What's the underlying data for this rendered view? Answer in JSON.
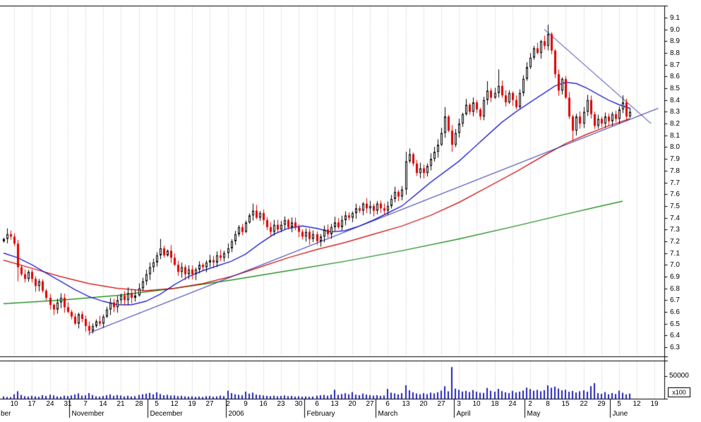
{
  "chart_data": {
    "type": "candlestick",
    "title": "",
    "grid": "vertical-dashed-weekly",
    "legend": "none",
    "price_axis": {
      "side": "right",
      "min": 6.3,
      "max": 9.1,
      "step": 0.1,
      "tick_labels": [
        "9.1",
        "9.0",
        "8.9",
        "8.8",
        "8.7",
        "8.6",
        "8.5",
        "8.4",
        "8.3",
        "8.2",
        "8.1",
        "8.0",
        "7.9",
        "7.8",
        "7.7",
        "7.6",
        "7.5",
        "7.4",
        "7.3",
        "7.2",
        "7.1",
        "7.0",
        "6.9",
        "6.8",
        "6.7",
        "6.6",
        "6.5",
        "6.4",
        "6.3"
      ]
    },
    "volume_axis": {
      "tick_value": 50000,
      "tick_label": "50000",
      "multiplier_label": "x100"
    },
    "date_axis": {
      "first_tick_day": 3,
      "tick_spacing_days": 5,
      "week_tick_labels": [
        "10",
        "17",
        "24",
        "31",
        "7",
        "14",
        "21",
        "28",
        "5",
        "12",
        "19",
        "27",
        "2",
        "9",
        "16",
        "23",
        "30",
        "6",
        "13",
        "20",
        "27",
        "6",
        "13",
        "20",
        "27",
        "3",
        "10",
        "18",
        "24",
        "2",
        "8",
        "15",
        "22",
        "29",
        "5",
        "12",
        "19"
      ],
      "month_labels": [
        {
          "label": "ber",
          "day": -1.6
        },
        {
          "label": "November",
          "day": 18.5
        },
        {
          "label": "December",
          "day": 40.5
        },
        {
          "label": "2006",
          "day": 62.5
        },
        {
          "label": "February",
          "day": 84.5
        },
        {
          "label": "March",
          "day": 104.5
        },
        {
          "label": "April",
          "day": 126.5
        },
        {
          "label": "May",
          "day": 146.5
        },
        {
          "label": "June",
          "day": 170.5
        }
      ]
    },
    "candles": {
      "note": "daily closes; open = previous close; highs/lows small wicks with listed overrides",
      "closes": [
        7.22,
        7.26,
        7.24,
        7.18,
        6.98,
        6.92,
        6.88,
        6.94,
        6.88,
        6.82,
        6.86,
        6.78,
        6.72,
        6.66,
        6.62,
        6.68,
        6.72,
        6.64,
        6.6,
        6.56,
        6.5,
        6.58,
        6.54,
        6.48,
        6.44,
        6.48,
        6.52,
        6.5,
        6.56,
        6.62,
        6.68,
        6.64,
        6.7,
        6.74,
        6.7,
        6.76,
        6.72,
        6.74,
        6.8,
        6.86,
        6.92,
        6.98,
        7.02,
        7.08,
        7.14,
        7.08,
        7.12,
        7.06,
        7.0,
        6.94,
        6.98,
        6.92,
        6.96,
        6.92,
        6.96,
        7.0,
        6.98,
        7.02,
        7.04,
        7.02,
        7.08,
        7.06,
        7.1,
        7.14,
        7.2,
        7.26,
        7.32,
        7.28,
        7.36,
        7.42,
        7.46,
        7.4,
        7.44,
        7.38,
        7.32,
        7.28,
        7.34,
        7.3,
        7.34,
        7.38,
        7.32,
        7.36,
        7.32,
        7.28,
        7.24,
        7.28,
        7.22,
        7.26,
        7.2,
        7.24,
        7.3,
        7.26,
        7.32,
        7.36,
        7.32,
        7.38,
        7.42,
        7.4,
        7.44,
        7.48,
        7.46,
        7.52,
        7.48,
        7.5,
        7.46,
        7.52,
        7.48,
        7.46,
        7.5,
        7.56,
        7.62,
        7.58,
        7.64,
        7.88,
        7.94,
        7.86,
        7.78,
        7.82,
        7.78,
        7.84,
        7.9,
        7.96,
        8.02,
        8.12,
        8.26,
        8.14,
        8.02,
        8.12,
        8.2,
        8.28,
        8.36,
        8.3,
        8.38,
        8.32,
        8.26,
        8.4,
        8.48,
        8.42,
        8.46,
        8.52,
        8.44,
        8.38,
        8.46,
        8.4,
        8.34,
        8.46,
        8.58,
        8.68,
        8.76,
        8.84,
        8.8,
        8.9,
        8.86,
        8.96,
        8.82,
        8.62,
        8.48,
        8.58,
        8.42,
        8.26,
        8.14,
        8.26,
        8.2,
        8.3,
        8.4,
        8.28,
        8.18,
        8.24,
        8.2,
        8.26,
        8.22,
        8.28,
        8.24,
        8.32,
        8.38,
        8.26,
        8.3
      ],
      "wick_overrides": {
        "4": {
          "l": 6.86
        },
        "24": {
          "l": 6.4
        },
        "44": {
          "h": 7.22
        },
        "70": {
          "h": 7.52
        },
        "113": {
          "h": 7.96
        },
        "124": {
          "h": 8.34
        },
        "126": {
          "l": 7.96
        },
        "136": {
          "h": 8.56
        },
        "139": {
          "h": 8.66
        },
        "153": {
          "h": 9.04
        },
        "160": {
          "l": 8.05
        },
        "174": {
          "h": 8.44
        }
      }
    },
    "volumes": [
      5200,
      4100,
      3600,
      9800,
      16500,
      8200,
      5600,
      4800,
      6400,
      5200,
      4300,
      7800,
      6200,
      8900,
      7400,
      5100,
      4600,
      6800,
      5900,
      7200,
      9400,
      11800,
      6800,
      7600,
      12500,
      8300,
      5400,
      4700,
      6200,
      7800,
      9600,
      6400,
      8200,
      7100,
      5300,
      6600,
      4900,
      5700,
      8400,
      9800,
      11200,
      12800,
      9600,
      14200,
      10400,
      7800,
      8600,
      6900,
      7400,
      5800,
      6300,
      5100,
      4700,
      5400,
      4200,
      4900,
      3800,
      5600,
      6100,
      4400,
      5200,
      6800,
      5900,
      17800,
      12400,
      9800,
      8700,
      7600,
      15600,
      11200,
      13400,
      9100,
      8300,
      7200,
      6400,
      5800,
      6700,
      5300,
      6100,
      7400,
      5600,
      6200,
      4800,
      5400,
      4600,
      5100,
      4300,
      4900,
      6800,
      7600,
      8400,
      6700,
      9200,
      19800,
      8600,
      10400,
      12200,
      9800,
      14600,
      8900,
      7800,
      11400,
      9200,
      8100,
      6900,
      7800,
      6400,
      7100,
      21600,
      13400,
      11800,
      9600,
      12400,
      29800,
      18600,
      14200,
      11600,
      9800,
      12400,
      10200,
      13600,
      11800,
      14400,
      17800,
      27600,
      16400,
      70000,
      22400,
      19600,
      15800,
      17400,
      14800,
      19200,
      15600,
      13400,
      12800,
      23800,
      17600,
      15400,
      21800,
      16800,
      14200,
      12600,
      17400,
      13800,
      15600,
      18200,
      24600,
      21400,
      17800,
      19600,
      16400,
      18800,
      29400,
      24200,
      26800,
      22400,
      18600,
      19800,
      15400,
      17200,
      13800,
      16400,
      18600,
      15600,
      27800,
      34600,
      12400,
      10800,
      14600,
      9800,
      12600,
      10400,
      17800,
      13200,
      9600,
      11400
    ],
    "moving_averages": [
      {
        "name": "ma-fast-blue",
        "color": "#0000cc",
        "points": [
          [
            0,
            7.1
          ],
          [
            4,
            7.06
          ],
          [
            8,
            7.0
          ],
          [
            12,
            6.93
          ],
          [
            16,
            6.86
          ],
          [
            20,
            6.79
          ],
          [
            24,
            6.73
          ],
          [
            28,
            6.69
          ],
          [
            32,
            6.66
          ],
          [
            36,
            6.66
          ],
          [
            40,
            6.69
          ],
          [
            44,
            6.75
          ],
          [
            48,
            6.83
          ],
          [
            52,
            6.9
          ],
          [
            56,
            6.95
          ],
          [
            60,
            6.99
          ],
          [
            64,
            7.03
          ],
          [
            68,
            7.09
          ],
          [
            72,
            7.18
          ],
          [
            76,
            7.26
          ],
          [
            80,
            7.31
          ],
          [
            84,
            7.33
          ],
          [
            88,
            7.31
          ],
          [
            92,
            7.28
          ],
          [
            96,
            7.29
          ],
          [
            100,
            7.33
          ],
          [
            104,
            7.38
          ],
          [
            108,
            7.44
          ],
          [
            112,
            7.5
          ],
          [
            116,
            7.6
          ],
          [
            120,
            7.7
          ],
          [
            124,
            7.79
          ],
          [
            128,
            7.88
          ],
          [
            132,
            7.99
          ],
          [
            136,
            8.1
          ],
          [
            140,
            8.21
          ],
          [
            144,
            8.3
          ],
          [
            148,
            8.38
          ],
          [
            152,
            8.46
          ],
          [
            155,
            8.52
          ],
          [
            158,
            8.55
          ],
          [
            161,
            8.54
          ],
          [
            164,
            8.5
          ],
          [
            167,
            8.45
          ],
          [
            170,
            8.4
          ],
          [
            173,
            8.36
          ],
          [
            176,
            8.33
          ]
        ]
      },
      {
        "name": "ma-medium-red",
        "color": "#cc0000",
        "points": [
          [
            0,
            7.04
          ],
          [
            8,
            6.97
          ],
          [
            16,
            6.9
          ],
          [
            24,
            6.84
          ],
          [
            32,
            6.8
          ],
          [
            40,
            6.78
          ],
          [
            48,
            6.8
          ],
          [
            56,
            6.84
          ],
          [
            64,
            6.9
          ],
          [
            72,
            6.98
          ],
          [
            80,
            7.06
          ],
          [
            88,
            7.13
          ],
          [
            96,
            7.19
          ],
          [
            104,
            7.26
          ],
          [
            112,
            7.33
          ],
          [
            120,
            7.42
          ],
          [
            128,
            7.53
          ],
          [
            136,
            7.66
          ],
          [
            144,
            7.79
          ],
          [
            152,
            7.93
          ],
          [
            158,
            8.03
          ],
          [
            164,
            8.11
          ],
          [
            170,
            8.18
          ],
          [
            176,
            8.24
          ]
        ]
      },
      {
        "name": "ma-long-green",
        "color": "#008000",
        "points": [
          [
            0,
            6.67
          ],
          [
            16,
            6.7
          ],
          [
            32,
            6.74
          ],
          [
            48,
            6.8
          ],
          [
            64,
            6.87
          ],
          [
            80,
            6.95
          ],
          [
            96,
            7.03
          ],
          [
            112,
            7.12
          ],
          [
            128,
            7.22
          ],
          [
            144,
            7.33
          ],
          [
            158,
            7.43
          ],
          [
            168,
            7.5
          ],
          [
            174,
            7.54
          ]
        ]
      }
    ],
    "trendlines": [
      {
        "name": "uptrend-line",
        "color": "#2222aa",
        "from": [
          24,
          6.42
        ],
        "to": [
          184,
          8.33
        ]
      },
      {
        "name": "downtrend-line",
        "color": "#2222aa",
        "from": [
          152,
          9.0
        ],
        "to": [
          182,
          8.2
        ]
      }
    ],
    "colors": {
      "up_candle_fill": "#ffffff",
      "up_candle_outline": "#000000",
      "down_candle": "#dd0000",
      "volume_bar": "#2222bb",
      "grid": "#bcbcbc",
      "border": "#000000",
      "axis_text": "#000000",
      "background": "#ffffff"
    }
  }
}
